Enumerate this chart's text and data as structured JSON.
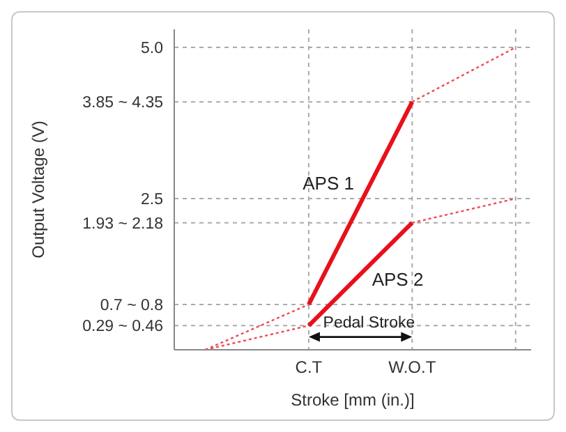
{
  "chart_data": {
    "type": "line",
    "xlabel": "Stroke [mm (in.)]",
    "ylabel": "Output Voltage (V)",
    "categories": [
      null,
      "C.T",
      "W.O.T",
      null
    ],
    "ylim": [
      0,
      5.3
    ],
    "yticks": [
      {
        "value": 0.4,
        "label": "0.29 ~ 0.46"
      },
      {
        "value": 0.75,
        "label": "0.7 ~ 0.8"
      },
      {
        "value": 2.1,
        "label": "1.93 ~ 2.18"
      },
      {
        "value": 2.5,
        "label": "2.5"
      },
      {
        "value": 4.1,
        "label": "3.85 ~ 4.35"
      },
      {
        "value": 5.0,
        "label": "5.0"
      }
    ],
    "grid": true,
    "legend": false,
    "marker": "none",
    "series": [
      {
        "name": "APS 1",
        "color": "#e8101a",
        "line_style": "solid",
        "values": [
          null,
          0.75,
          4.1,
          null
        ]
      },
      {
        "color": "#f04a50",
        "line_style": "dotted",
        "values": [
          0,
          0.75,
          null,
          null
        ]
      },
      {
        "color": "#f04a50",
        "line_style": "dotted",
        "values": [
          null,
          null,
          4.1,
          5.0
        ]
      },
      {
        "name": "APS 2",
        "color": "#e8101a",
        "line_style": "solid",
        "values": [
          null,
          0.4,
          2.1,
          null
        ]
      },
      {
        "color": "#f04a50",
        "line_style": "dotted",
        "values": [
          0,
          0.4,
          null,
          null
        ]
      },
      {
        "color": "#f04a50",
        "line_style": "dotted",
        "values": [
          null,
          null,
          2.1,
          2.5
        ]
      }
    ],
    "annotations": [
      "Pedal Stroke"
    ]
  }
}
